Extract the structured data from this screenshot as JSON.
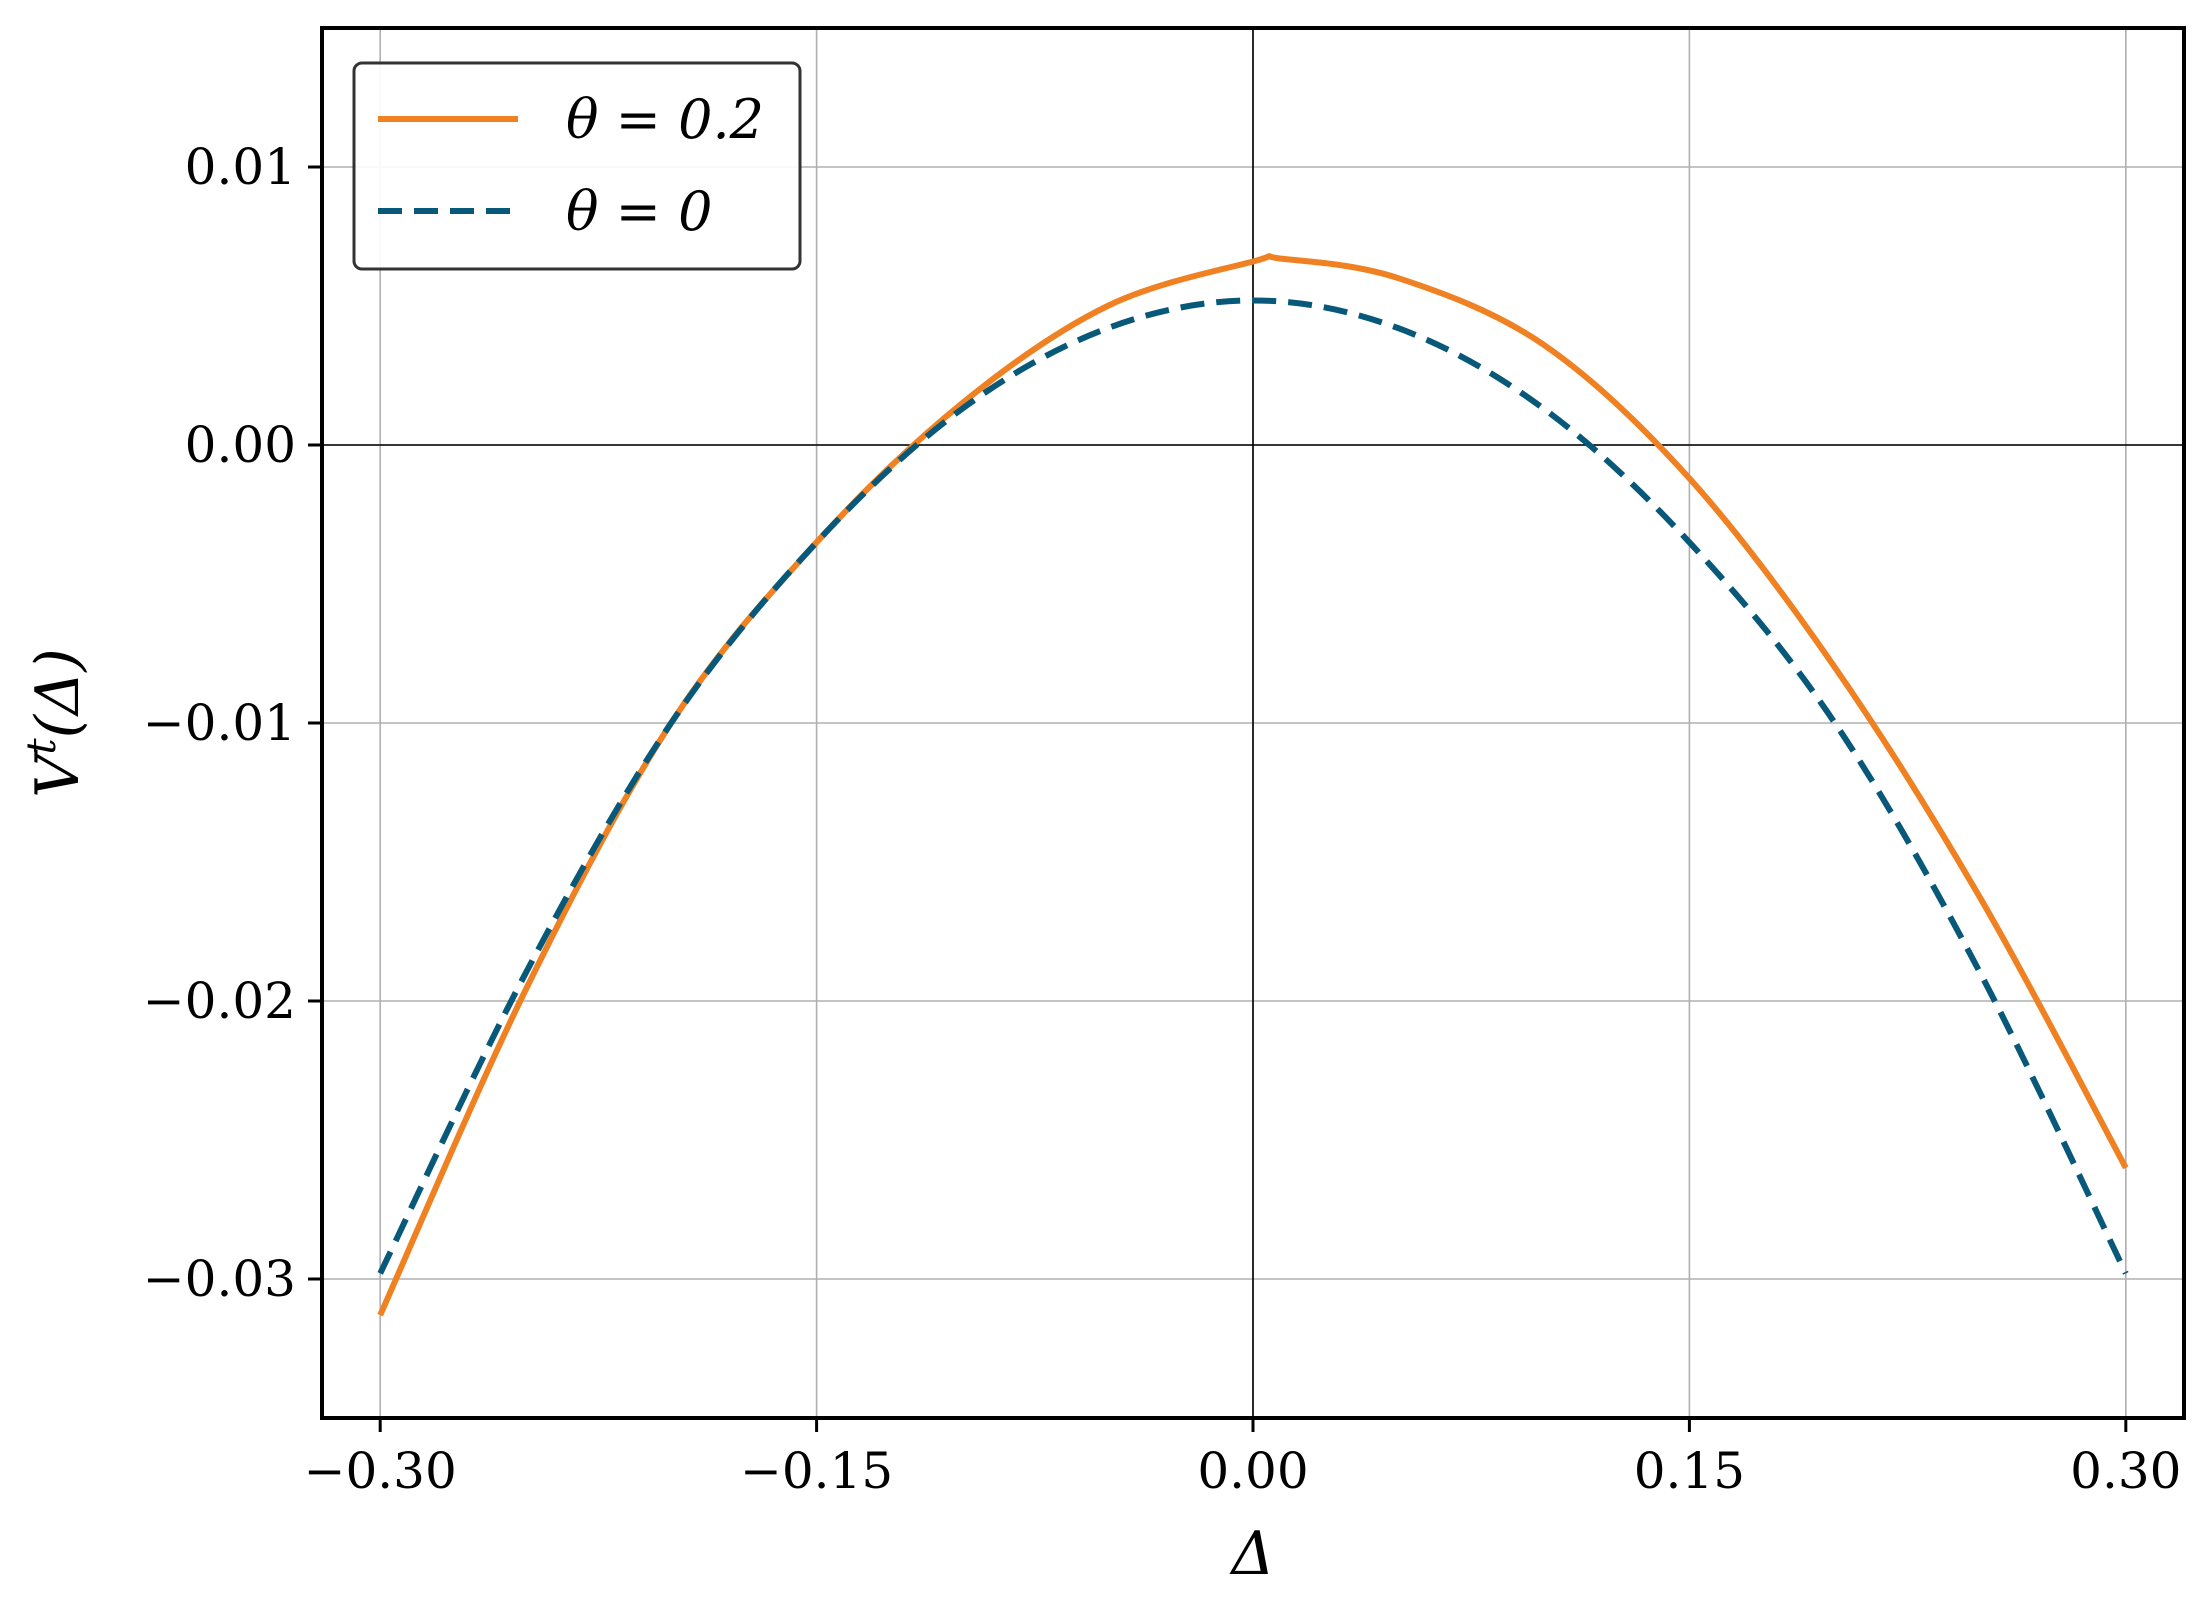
{
  "chart_data": {
    "type": "line",
    "title": "",
    "xlabel": "Δ",
    "ylabel": "V^t(Δ)",
    "xlim": [
      -0.32,
      0.32
    ],
    "ylim": [
      -0.035,
      0.015
    ],
    "xticks": [
      -0.3,
      -0.15,
      0.0,
      0.15,
      0.3
    ],
    "xtick_labels": [
      "−0.30",
      "−0.15",
      "0.00",
      "0.15",
      "0.30"
    ],
    "yticks": [
      0.01,
      0.0,
      -0.01,
      -0.02,
      -0.03
    ],
    "ytick_labels": [
      "0.01",
      "0.00",
      "−0.01",
      "−0.02",
      "−0.03"
    ],
    "grid": true,
    "reference_lines": {
      "x": 0,
      "y": 0
    },
    "legend_position": "top-left",
    "series": [
      {
        "name": "θ = 0.2",
        "color": "#f08122",
        "style": "solid",
        "x": [
          -0.3,
          -0.25,
          -0.2,
          -0.15,
          -0.1,
          -0.05,
          0.0,
          0.01,
          0.05,
          0.1,
          0.15,
          0.2,
          0.25,
          0.3
        ],
        "y": [
          -0.0313,
          -0.0196,
          -0.01,
          -0.0035,
          0.0015,
          0.005,
          0.0066,
          0.0067,
          0.006,
          0.0036,
          -0.0012,
          -0.008,
          -0.0163,
          -0.026
        ]
      },
      {
        "name": "θ = 0",
        "color": "#08587a",
        "style": "dashed",
        "x": [
          -0.3,
          -0.25,
          -0.2,
          -0.15,
          -0.1,
          -0.05,
          0.0,
          0.05,
          0.1,
          0.15,
          0.2,
          0.25,
          0.3
        ],
        "y": [
          -0.0298,
          -0.019,
          -0.01,
          -0.0035,
          0.0013,
          0.0042,
          0.0052,
          0.0042,
          0.0013,
          -0.0035,
          -0.01,
          -0.019,
          -0.0298
        ]
      }
    ]
  }
}
